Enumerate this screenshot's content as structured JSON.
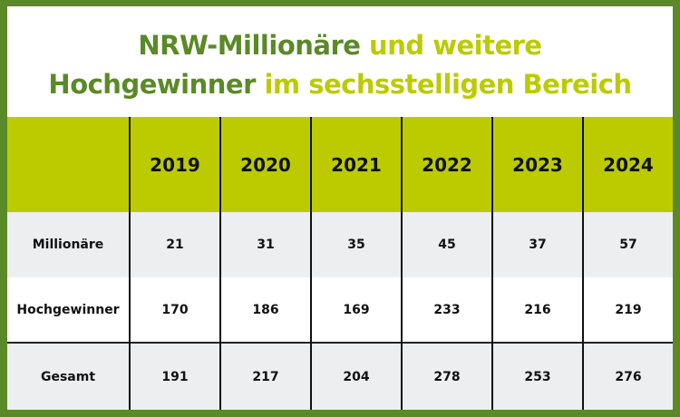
{
  "title": {
    "line1_dark": "NRW-Millionäre",
    "line1_light": "und weitere",
    "line2_dark": "Hochgewinner",
    "line2_light": "im sechsstelligen Bereich"
  },
  "colors": {
    "frame": "#5a8a27",
    "accent": "#bccb00",
    "row_gray": "#edeef0",
    "row_white": "#ffffff",
    "text": "#111111"
  },
  "table": {
    "corner": "",
    "years": [
      "2019",
      "2020",
      "2021",
      "2022",
      "2023",
      "2024"
    ],
    "rows": [
      {
        "label": "Millionäre",
        "values": [
          "21",
          "31",
          "35",
          "45",
          "37",
          "57"
        ]
      },
      {
        "label": "Hochgewinner",
        "values": [
          "170",
          "186",
          "169",
          "233",
          "216",
          "219"
        ]
      },
      {
        "label": "Gesamt",
        "values": [
          "191",
          "217",
          "204",
          "278",
          "253",
          "276"
        ]
      }
    ]
  },
  "chart_data": {
    "type": "table",
    "title": "NRW-Millionäre und weitere Hochgewinner im sechsstelligen Bereich",
    "categories": [
      "2019",
      "2020",
      "2021",
      "2022",
      "2023",
      "2024"
    ],
    "series": [
      {
        "name": "Millionäre",
        "values": [
          21,
          31,
          35,
          45,
          37,
          57
        ]
      },
      {
        "name": "Hochgewinner",
        "values": [
          170,
          186,
          169,
          233,
          216,
          219
        ]
      },
      {
        "name": "Gesamt",
        "values": [
          191,
          217,
          204,
          278,
          253,
          276
        ]
      }
    ]
  }
}
